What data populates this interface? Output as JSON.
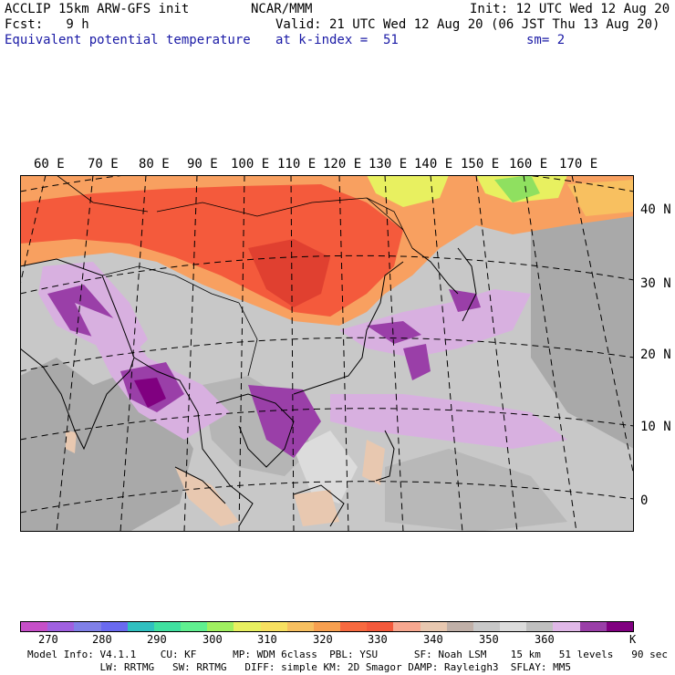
{
  "header": {
    "line1_left": "ACCLIP 15km ARW-GFS init",
    "line1_mid": "NCAR/MMM",
    "line1_right": "Init: 12 UTC Wed 12 Aug 20",
    "line2_left": "Fcst:   9 h",
    "line2_right": "Valid: 21 UTC Wed 12 Aug 20 (06 JST Thu 13 Aug 20)",
    "line3_left": "Equivalent potential temperature",
    "line3_mid": "at k-index =  51",
    "line3_right": "sm= 2"
  },
  "map": {
    "lon_labels": [
      "60 E",
      "70 E",
      "80 E",
      "90 E",
      "100 E",
      "110 E",
      "120 E",
      "130 E",
      "140 E",
      "150 E",
      "160 E",
      "170 E"
    ],
    "lat_labels": [
      "40 N",
      "30 N",
      "20 N",
      "10 N",
      "0"
    ],
    "colors": {
      "background": "#c8c8c8",
      "land_gray": "#a9a9a9",
      "hot_red": "#f45a3c",
      "orange": "#f8a060",
      "light_purple": "#d8b0e0",
      "purple": "#9a3fa8",
      "green": "#8fe060"
    }
  },
  "colorbar": {
    "colors": [
      "#c64fc8",
      "#a060e0",
      "#8080e8",
      "#6a6af0",
      "#30c0c0",
      "#40e0a0",
      "#60f090",
      "#a0f060",
      "#e8f060",
      "#f8e060",
      "#f8c060",
      "#f8a050",
      "#f86a40",
      "#f45a3c",
      "#f8a890",
      "#e8c8b0",
      "#c0b0a8",
      "#c8c8c8",
      "#dcdcdc",
      "#c0c0c0",
      "#e0b8e8",
      "#9a3fa8",
      "#800080"
    ],
    "labels": [
      "270",
      "280",
      "290",
      "300",
      "310",
      "320",
      "330",
      "340",
      "350",
      "360"
    ],
    "unit": "K"
  },
  "footer": {
    "line1": "Model Info: V4.1.1    CU: KF      MP: WDM 6class  PBL: YSU      SF: Noah LSM    15 km   51 levels   90 sec",
    "line2": "            LW: RRTMG   SW: RRTMG   DIFF: simple KM: 2D Smagor DAMP: Rayleigh3  SFLAY: MM5"
  }
}
